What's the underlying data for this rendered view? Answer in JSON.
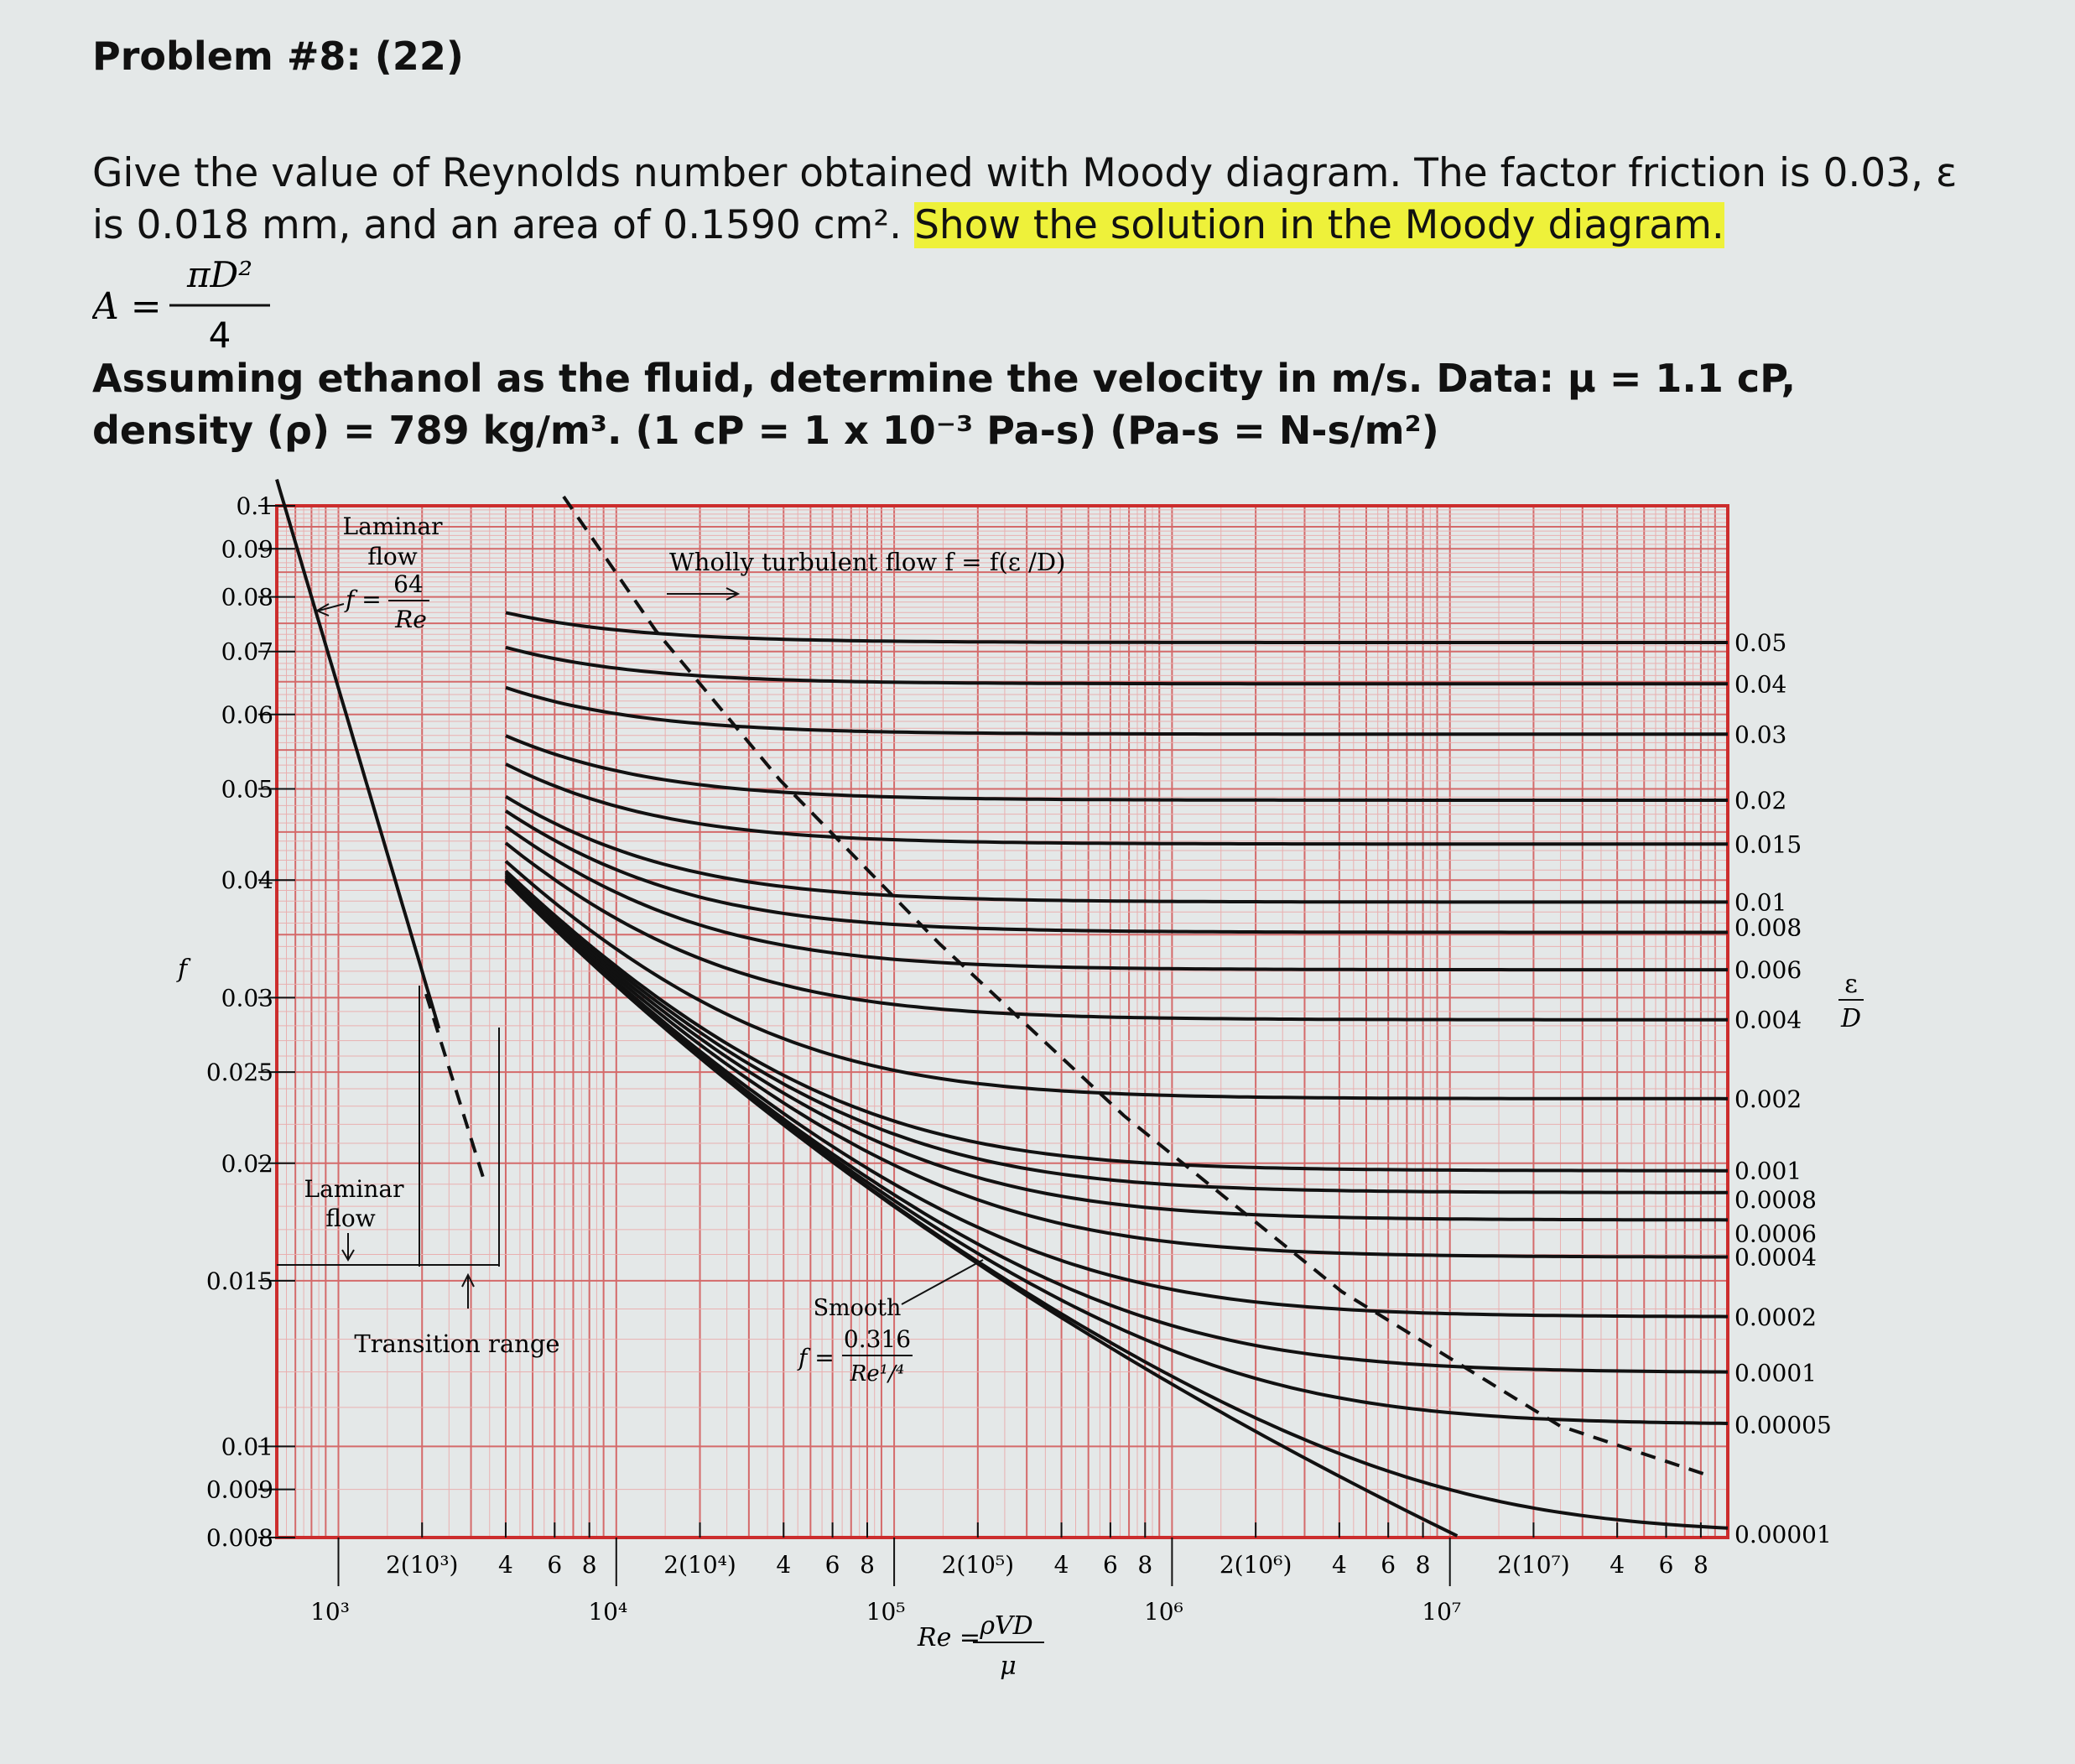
{
  "problem": {
    "title": "Problem #8: (22)",
    "question_a": "Give the value of Reynolds number obtained with Moody diagram. The factor friction is 0.03, ε is 0.018 mm, and an area of 0.1590 cm².",
    "question_a_highlight": "Show the solution in the Moody diagram.",
    "formula_lhs": "A =",
    "formula_num": "πD²",
    "formula_den": "4",
    "question_b": "Assuming ethanol as the fluid, determine the velocity in m/s. Data: μ = 1.1 cP, density (ρ) = 789 kg/m³. (1 cP = 1 x 10⁻³ Pa-s) (Pa-s = N-s/m²)",
    "highlight_color": "#eef13a"
  },
  "chart_data": {
    "type": "line",
    "x_scale": "log",
    "y_scale": "log",
    "xlim": [
      600,
      100000000
    ],
    "ylim": [
      0.008,
      0.1
    ],
    "y_ticks": [
      "0.1",
      "0.09",
      "0.08",
      "0.07",
      "0.06",
      "0.05",
      "0.04",
      "0.03",
      "0.025",
      "0.02",
      "0.015",
      "0.01",
      "0.009",
      "0.008"
    ],
    "y_tick_values": [
      0.1,
      0.09,
      0.08,
      0.07,
      0.06,
      0.05,
      0.04,
      0.03,
      0.025,
      0.02,
      0.015,
      0.01,
      0.009,
      0.008
    ],
    "y_axis_label": "f",
    "x_decade_labels": [
      "10³",
      "10⁴",
      "10⁵",
      "10⁶",
      "10⁷"
    ],
    "x_decade_values": [
      1000,
      10000,
      100000,
      1000000,
      10000000
    ],
    "x_minor_labels": [
      "2(10³)",
      "4",
      "6",
      "8",
      "2(10⁴)",
      "4",
      "6",
      "8",
      "2(10⁵)",
      "4",
      "6",
      "8",
      "2(10⁶)",
      "4",
      "6",
      "8",
      "2(10⁷)",
      "4",
      "6",
      "8"
    ],
    "x_minor_values": [
      2000,
      4000,
      6000,
      8000,
      20000,
      40000,
      60000,
      80000,
      200000,
      400000,
      600000,
      800000,
      2000000,
      4000000,
      6000000,
      8000000,
      20000000,
      40000000,
      60000000,
      80000000
    ],
    "x_axis_label": {
      "lhs": "Re =",
      "num": "ρVD",
      "den": "μ"
    },
    "right_axis_label": {
      "num": "ε",
      "den": "D"
    },
    "roughness_labels": [
      "0.05",
      "0.04",
      "0.03",
      "0.02",
      "0.015",
      "0.01",
      "0.008",
      "0.006",
      "0.004",
      "0.002",
      "0.001",
      "0.0008",
      "0.0006",
      "0.0004",
      "0.0002",
      "0.0001",
      "0.00005",
      "0.00001"
    ],
    "roughness_values": [
      0.05,
      0.04,
      0.03,
      0.02,
      0.015,
      0.01,
      0.008,
      0.006,
      0.004,
      0.002,
      0.001,
      0.0008,
      0.0006,
      0.0004,
      0.0002,
      0.0001,
      5e-05,
      1e-05
    ],
    "laminar": {
      "equation": "f = 64/Re",
      "x_range": [
        600,
        2300
      ]
    },
    "annotations": {
      "laminar_top_title": "Laminar",
      "laminar_top_sub": "flow",
      "laminar_eq_lhs": "f =",
      "laminar_eq_num": "64",
      "laminar_eq_den": "Re",
      "wholly_turbulent": "Wholly turbulent flow f = f(ε /D)",
      "laminar_bottom_title": "Laminar",
      "laminar_bottom_sub": "flow",
      "transition": "Transition range",
      "smooth": "Smooth",
      "smooth_eq_lhs": "f =",
      "smooth_eq_num": "0.316",
      "smooth_eq_den": "Re¹/⁴"
    },
    "colors": {
      "grid_major": "#d46a6a",
      "grid_minor": "#e9b0b0",
      "frame": "#cc2d2d",
      "curve": "#111111"
    }
  }
}
